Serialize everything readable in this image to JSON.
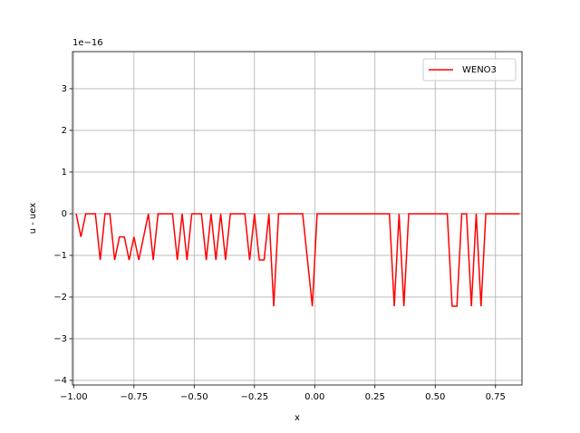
{
  "chart_data": {
    "type": "line",
    "xlabel": "x",
    "ylabel": "u - uex",
    "y_offset_label": "1e−16",
    "x": [
      -0.99,
      -0.97,
      -0.95,
      -0.93,
      -0.91,
      -0.89,
      -0.87,
      -0.85,
      -0.83,
      -0.81,
      -0.79,
      -0.77,
      -0.75,
      -0.73,
      -0.71,
      -0.69,
      -0.67,
      -0.65,
      -0.63,
      -0.61,
      -0.59,
      -0.57,
      -0.55,
      -0.53,
      -0.51,
      -0.49,
      -0.47,
      -0.45,
      -0.43,
      -0.41,
      -0.39,
      -0.37,
      -0.35,
      -0.33,
      -0.31,
      -0.29,
      -0.27,
      -0.25,
      -0.23,
      -0.21,
      -0.19,
      -0.17,
      -0.15,
      -0.13,
      -0.11,
      -0.09,
      -0.07,
      -0.05,
      -0.03,
      -0.01,
      0.01,
      0.03,
      0.05,
      0.07,
      0.09,
      0.11,
      0.13,
      0.15,
      0.17,
      0.19,
      0.21,
      0.23,
      0.25,
      0.27,
      0.29,
      0.31,
      0.33,
      0.35,
      0.37,
      0.39,
      0.41,
      0.43,
      0.45,
      0.47,
      0.49,
      0.51,
      0.53,
      0.55,
      0.57,
      0.59,
      0.61,
      0.63,
      0.65,
      0.67,
      0.69,
      0.71,
      0.73,
      0.75,
      0.77,
      0.79,
      0.81,
      0.83,
      0.85
    ],
    "series": [
      {
        "name": "WENO3",
        "color": "#ff0000",
        "values": [
          0,
          -0.555,
          0,
          0,
          0,
          -1.11,
          0,
          0,
          -1.11,
          -0.555,
          -0.555,
          -1.11,
          -0.555,
          -1.11,
          -0.555,
          0,
          -1.11,
          0,
          0,
          0,
          0,
          -1.11,
          0,
          -1.11,
          0,
          0,
          0,
          -1.11,
          0,
          -1.11,
          0,
          -1.11,
          0,
          0,
          0,
          0,
          -1.11,
          0,
          -1.11,
          -1.11,
          0,
          -2.22,
          0,
          0,
          0,
          0,
          0,
          0,
          -1.11,
          -2.22,
          0,
          0,
          0,
          0,
          0,
          0,
          0,
          0,
          0,
          0,
          0,
          0,
          0,
          0,
          0,
          0,
          -2.22,
          0,
          -2.22,
          0,
          0,
          0,
          0,
          0,
          0,
          0,
          0,
          0,
          -2.22,
          -2.22,
          0,
          0,
          -2.22,
          0,
          -2.22,
          0,
          0,
          0,
          0,
          0,
          0,
          0,
          0
        ]
      }
    ],
    "xlim": [
      -1.005,
      0.86
    ],
    "ylim": [
      -4.11,
      3.89
    ],
    "xticks": [
      {
        "value": -1,
        "label": "−1.00"
      },
      {
        "value": -0.75,
        "label": "−0.75"
      },
      {
        "value": -0.5,
        "label": "−0.50"
      },
      {
        "value": -0.25,
        "label": "−0.25"
      },
      {
        "value": 0,
        "label": "0.00"
      },
      {
        "value": 0.25,
        "label": "0.25"
      },
      {
        "value": 0.5,
        "label": "0.50"
      },
      {
        "value": 0.75,
        "label": "0.75"
      }
    ],
    "yticks": [
      {
        "value": -4,
        "label": "−4"
      },
      {
        "value": -3,
        "label": "−3"
      },
      {
        "value": -2,
        "label": "−2"
      },
      {
        "value": -1,
        "label": "−1"
      },
      0,
      1,
      2,
      3
    ],
    "grid": true,
    "legend": "upper right"
  }
}
